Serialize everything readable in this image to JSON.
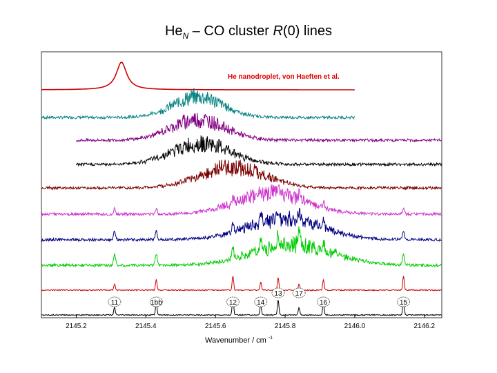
{
  "title": {
    "prefix": "He",
    "sub": "N",
    "middle": " – CO  cluster  ",
    "italic": "R",
    "suffix": "(0) lines"
  },
  "chart_data": {
    "type": "line",
    "title": "HeN – CO  cluster  R(0) lines",
    "xlabel": "Wavenumber / cm",
    "xlabel_sup": "-1",
    "xlim": [
      2145.1,
      2146.25
    ],
    "xticks": [
      2145.2,
      2145.4,
      2145.6,
      2145.8,
      2146.0,
      2146.2
    ],
    "xtick_labels": [
      "2145.2",
      "2145.4",
      "2145.6",
      "2145.8",
      "2146.0",
      "2146.2"
    ],
    "grid": false,
    "legend": "none",
    "annotation": "He nanodroplet, von Haeften et al.",
    "series": [
      {
        "color": "#cc0000",
        "kind": "droplet",
        "center": 2145.33,
        "extent": [
          2145.1,
          2146.0
        ]
      },
      {
        "color": "#008080",
        "kind": "band",
        "center": 2145.55,
        "extent": [
          2145.1,
          2146.0
        ]
      },
      {
        "color": "#800080",
        "kind": "band",
        "center": 2145.55,
        "extent": [
          2145.2,
          2146.25
        ]
      },
      {
        "color": "#000000",
        "kind": "band",
        "center": 2145.56,
        "extent": [
          2145.2,
          2146.25
        ]
      },
      {
        "color": "#7a0000",
        "kind": "band",
        "center": 2145.65,
        "extent": [
          2145.1,
          2146.25
        ]
      },
      {
        "color": "#cc33cc",
        "kind": "band",
        "center": 2145.76,
        "extent": [
          2145.1,
          2146.25
        ]
      },
      {
        "color": "#000080",
        "kind": "band",
        "center": 2145.8,
        "extent": [
          2145.1,
          2146.25
        ]
      },
      {
        "color": "#00cc00",
        "kind": "band",
        "center": 2145.82,
        "extent": [
          2145.1,
          2146.25
        ]
      },
      {
        "color": "#cc0000",
        "kind": "lines",
        "extent": [
          2145.1,
          2146.25
        ]
      },
      {
        "color": "#000000",
        "kind": "lines",
        "extent": [
          2145.1,
          2146.25
        ]
      }
    ],
    "peaks": [
      {
        "label": "11",
        "x": 2145.31
      },
      {
        "label": "1bb",
        "x": 2145.43
      },
      {
        "label": "12",
        "x": 2145.65
      },
      {
        "label": "14",
        "x": 2145.73
      },
      {
        "label": "13",
        "x": 2145.78
      },
      {
        "label": "17",
        "x": 2145.84
      },
      {
        "label": "16",
        "x": 2145.91
      },
      {
        "label": "15",
        "x": 2146.14
      }
    ]
  }
}
